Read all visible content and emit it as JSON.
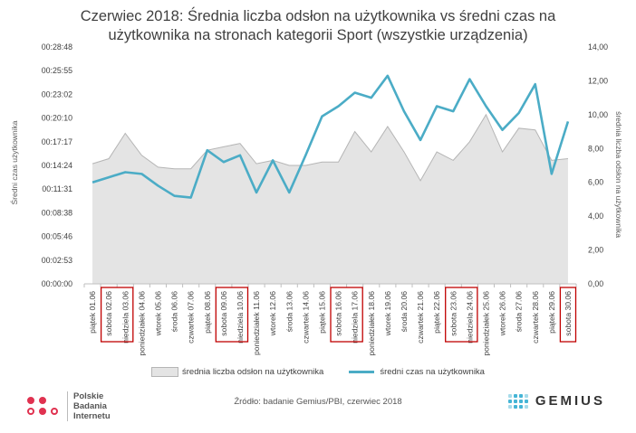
{
  "chart_data": {
    "type": "line",
    "title": "Czerwiec 2018: Średnia liczba odsłon na użytkownika vs średni czas na użytkownika na stronach kategorii Sport (wszystkie urządzenia)",
    "title_lines": [
      "Czerwiec 2018: Średnia liczba odsłon na użytkownika vs średni czas na",
      "użytkownika na stronach kategorii Sport (wszystkie urządzenia)"
    ],
    "ylabel_left": "Średni czas użytkownika",
    "ylabel_right": "średnia liczba odsłon na użytkownika",
    "y_left_ticks": [
      "00:00:00",
      "00:02:53",
      "00:05:46",
      "00:08:38",
      "00:11:31",
      "00:14:24",
      "00:17:17",
      "00:20:10",
      "00:23:02",
      "00:25:55",
      "00:28:48"
    ],
    "y_right_ticks": [
      "0,00",
      "2,00",
      "4,00",
      "6,00",
      "8,00",
      "10,00",
      "12,00",
      "14,00"
    ],
    "y_right_range": [
      0,
      14
    ],
    "categories": [
      "piątek 01.06",
      "sobota 02.06",
      "niedziela 03.06",
      "poniedziałek 04.06",
      "wtorek 05.06",
      "środa 06.06",
      "czwartek 07.06",
      "piątek 08.06",
      "sobota 09.06",
      "niedziela 10.06",
      "poniedziałek 11.06",
      "wtorek 12.06",
      "środa 13.06",
      "czwartek 14.06",
      "piątek 15.06",
      "sobota 16.06",
      "niedziela 17.06",
      "poniedziałek 18.06",
      "wtorek 19.06",
      "środa 20.06",
      "czwartek 21.06",
      "piątek 22.06",
      "sobota 23.06",
      "niedziela 24.06",
      "poniedziałek 25.06",
      "wtorek 26.06",
      "środa 27.06",
      "czwartek 28.06",
      "piątek 29.06",
      "sobota 30.06"
    ],
    "highlighted_groups": [
      [
        1,
        2
      ],
      [
        8,
        9
      ],
      [
        15,
        16
      ],
      [
        22,
        23
      ],
      [
        29
      ]
    ],
    "series": [
      {
        "name": "średnia liczba odsłon na użytkownika",
        "kind": "area",
        "axis": "right",
        "values": [
          7.1,
          7.4,
          8.9,
          7.6,
          6.9,
          6.8,
          6.8,
          7.9,
          8.1,
          8.3,
          7.1,
          7.3,
          7.0,
          7.0,
          7.2,
          7.2,
          9.0,
          7.8,
          9.3,
          7.8,
          6.1,
          7.8,
          7.3,
          8.4,
          10.0,
          7.8,
          9.2,
          9.1,
          7.3,
          7.4
        ],
        "color": "#e4e4e4",
        "stroke": "#b5b5b5"
      },
      {
        "name": "średni czas na użytkownika",
        "kind": "line",
        "axis": "right",
        "values": [
          6.0,
          6.3,
          6.6,
          6.5,
          5.8,
          5.2,
          5.1,
          7.9,
          7.2,
          7.6,
          5.4,
          7.3,
          5.4,
          7.6,
          9.9,
          10.5,
          11.3,
          11.0,
          12.3,
          10.2,
          8.5,
          10.5,
          10.2,
          12.1,
          10.5,
          9.1,
          10.1,
          11.8,
          6.5,
          9.6
        ],
        "color": "#4bacc6"
      }
    ],
    "legend_position": "bottom",
    "grid": false
  },
  "footer": {
    "source": "Źródło: badanie Gemius/PBI, czerwiec 2018",
    "pbi_lines": [
      "Polskie",
      "Badania",
      "Internetu"
    ],
    "gemius_logo": "GEMIUS",
    "accent_pbi": "#e03250",
    "accent_gemius": "#45b5d6"
  }
}
